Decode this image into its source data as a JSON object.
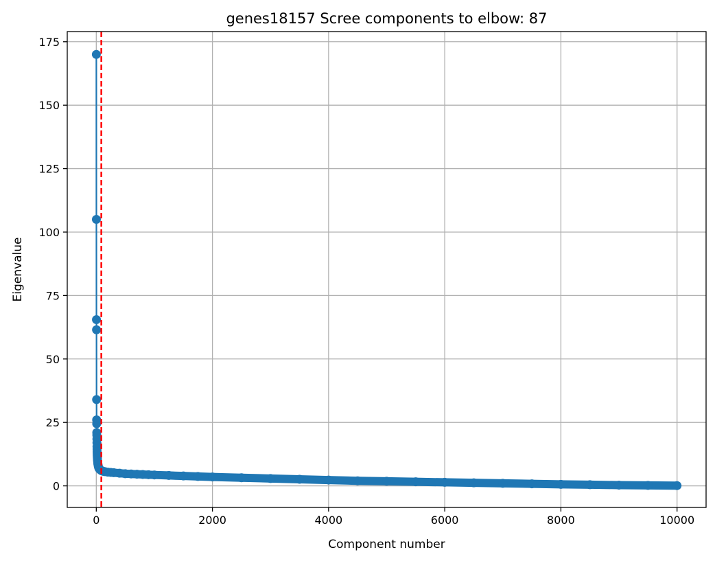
{
  "chart_data": {
    "type": "line",
    "title": "genes18157 Scree components to elbow: 87",
    "xlabel": "Component number",
    "ylabel": "Eigenvalue",
    "xlim": [
      -500,
      10500
    ],
    "ylim": [
      -8.5,
      179
    ],
    "xticks": [
      0,
      2000,
      4000,
      6000,
      8000,
      10000
    ],
    "yticks": [
      0,
      25,
      50,
      75,
      100,
      125,
      150,
      175
    ],
    "grid": true,
    "marker": "circle",
    "colors": {
      "series": "#1f77b4",
      "elbow": "#ff0000"
    },
    "elbow_x": 87,
    "series": [
      {
        "x": [
          1,
          2,
          3,
          4,
          5,
          6,
          7,
          8,
          9,
          10,
          11,
          12,
          13,
          14,
          15,
          16,
          17,
          18,
          19,
          20,
          22,
          24,
          26,
          28,
          30,
          35,
          40,
          45,
          50,
          60,
          70,
          87,
          100,
          125,
          150,
          200,
          250,
          300,
          400,
          500,
          600,
          700,
          800,
          900,
          1000,
          1250,
          1500,
          1750,
          2000,
          2500,
          3000,
          3500,
          4000,
          4500,
          5000,
          5500,
          6000,
          6500,
          7000,
          7500,
          8000,
          8500,
          9000,
          9500,
          10000
        ],
        "y": [
          170,
          105,
          65.5,
          61.5,
          34,
          26,
          24.5,
          21,
          20,
          18.5,
          17,
          15.5,
          14.5,
          13.5,
          12.8,
          12.2,
          11.7,
          11.2,
          10.8,
          10.4,
          9.9,
          9.4,
          9.0,
          8.6,
          8.3,
          7.7,
          7.3,
          7.0,
          6.8,
          6.5,
          6.3,
          6.0,
          5.9,
          5.7,
          5.6,
          5.4,
          5.3,
          5.2,
          5.0,
          4.8,
          4.7,
          4.6,
          4.5,
          4.4,
          4.3,
          4.1,
          3.9,
          3.7,
          3.5,
          3.2,
          2.9,
          2.6,
          2.3,
          2.0,
          1.8,
          1.6,
          1.4,
          1.2,
          1.0,
          0.8,
          0.6,
          0.45,
          0.3,
          0.2,
          0.1
        ]
      }
    ]
  }
}
